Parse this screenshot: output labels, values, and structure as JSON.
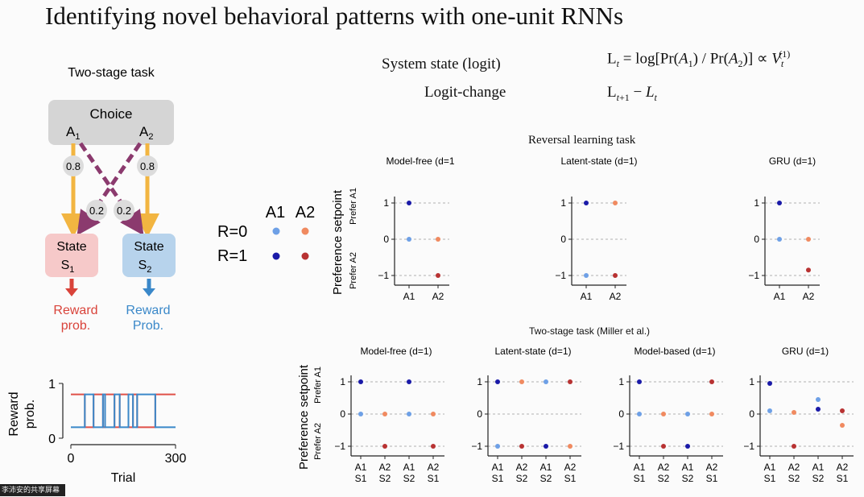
{
  "slide": {
    "title": "Identifying novel behavioral patterns with one-unit RNNs",
    "formula": {
      "state_label": "System state (logit)",
      "change_label": "Logit-change"
    }
  },
  "task_diagram": {
    "heading": "Two-stage task",
    "choice_label": "Choice",
    "action_1": "A",
    "action_1_sub": "1",
    "action_2": "A",
    "action_2_sub": "2",
    "p_common": "0.8",
    "p_rare": "0.2",
    "state_word": "State",
    "state_1": "S",
    "state_1_sub": "1",
    "state_2": "S",
    "state_2_sub": "2",
    "reward_1_a": "Reward",
    "reward_1_b": "prob.",
    "reward_2_a": "Reward",
    "reward_2_b": "Prob.",
    "colors": {
      "state1": "#f6c9c9",
      "state2": "#b7d3ec",
      "common": "#f2b541",
      "rare": "#8b3a6e",
      "reward1": "#d9433a",
      "reward2": "#3a88c9",
      "choice": "#d5d5d5"
    }
  },
  "legend": {
    "col_a1": "A1",
    "col_a2": "A2",
    "row_r0": "R=0",
    "row_r1": "R=1",
    "colors": {
      "a1_r0": "#6ea0e6",
      "a2_r0": "#f08a60",
      "a1_r1": "#1a1aa8",
      "a2_r1": "#b83232"
    }
  },
  "chart_data": [
    {
      "type": "line",
      "id": "reward_prob",
      "ylabel": "Reward prob.",
      "xlabel": "Trial",
      "xlim": [
        0,
        300
      ],
      "ylim": [
        0,
        1
      ],
      "xticks": [
        0,
        300
      ],
      "yticks": [
        0,
        1
      ],
      "series": [
        {
          "color": "#e05048",
          "x": [
            0,
            40,
            40,
            65,
            65,
            92,
            92,
            98,
            98,
            125,
            125,
            140,
            140,
            165,
            165,
            178,
            178,
            190,
            190,
            242,
            242,
            300
          ],
          "y": [
            0.8,
            0.8,
            0.2,
            0.2,
            0.8,
            0.8,
            0.2,
            0.2,
            0.8,
            0.8,
            0.2,
            0.2,
            0.8,
            0.8,
            0.2,
            0.2,
            0.8,
            0.8,
            0.2,
            0.2,
            0.8,
            0.8
          ]
        },
        {
          "color": "#3a88c9",
          "x": [
            0,
            40,
            40,
            65,
            65,
            92,
            92,
            98,
            98,
            125,
            125,
            140,
            140,
            165,
            165,
            178,
            178,
            190,
            190,
            242,
            242,
            300
          ],
          "y": [
            0.2,
            0.2,
            0.8,
            0.8,
            0.2,
            0.2,
            0.8,
            0.8,
            0.2,
            0.2,
            0.8,
            0.8,
            0.2,
            0.2,
            0.8,
            0.8,
            0.2,
            0.2,
            0.8,
            0.8,
            0.2,
            0.2
          ]
        }
      ]
    },
    {
      "type": "scatter",
      "group": "Reversal learning task",
      "id": "rev_model_free",
      "title": "Model-free (d=1)",
      "ylabel": "Preference setpoint",
      "y_top_note": "Prefer A1",
      "y_bottom_note": "Prefer A2",
      "categories": [
        "A1",
        "A2"
      ],
      "yticks": [
        1,
        0,
        -1
      ],
      "ylim": [
        -1.2,
        1.2
      ],
      "points": [
        {
          "x": 0,
          "y": 1,
          "kind": "a1_r1"
        },
        {
          "x": 0,
          "y": 0,
          "kind": "a1_r0"
        },
        {
          "x": 1,
          "y": 0,
          "kind": "a2_r0"
        },
        {
          "x": 1,
          "y": -1,
          "kind": "a2_r1"
        }
      ]
    },
    {
      "type": "scatter",
      "id": "rev_latent_state",
      "title": "Latent-state (d=1)",
      "categories": [
        "A1",
        "A2"
      ],
      "yticks": [
        1,
        0,
        -1
      ],
      "ylim": [
        -1.2,
        1.2
      ],
      "points": [
        {
          "x": 0,
          "y": 1,
          "kind": "a1_r1"
        },
        {
          "x": 1,
          "y": 1,
          "kind": "a2_r0"
        },
        {
          "x": 0,
          "y": -1,
          "kind": "a1_r0"
        },
        {
          "x": 1,
          "y": -1,
          "kind": "a2_r1"
        }
      ]
    },
    {
      "type": "scatter",
      "id": "rev_gru",
      "title": "GRU (d=1)",
      "categories": [
        "A1",
        "A2"
      ],
      "yticks": [
        1,
        0,
        -1
      ],
      "ylim": [
        -1.2,
        1.2
      ],
      "points": [
        {
          "x": 0,
          "y": 1,
          "kind": "a1_r1"
        },
        {
          "x": 0,
          "y": 0,
          "kind": "a1_r0"
        },
        {
          "x": 1,
          "y": 0,
          "kind": "a2_r0"
        },
        {
          "x": 1,
          "y": -0.85,
          "kind": "a2_r1"
        }
      ]
    },
    {
      "type": "scatter",
      "group": "Two-stage task (Miller et al.)",
      "id": "ts_model_free",
      "title": "Model-free (d=1)",
      "ylabel": "Preference setpoint",
      "y_top_note": "Prefer A1",
      "y_bottom_note": "Prefer A2",
      "categories": [
        "A1 S1",
        "A2 S2",
        "A1 S2",
        "A2 S1"
      ],
      "yticks": [
        1,
        0,
        -1
      ],
      "ylim": [
        -1.2,
        1.2
      ],
      "points": [
        {
          "x": 0,
          "y": 1,
          "kind": "a1_r1"
        },
        {
          "x": 0,
          "y": 0,
          "kind": "a1_r0"
        },
        {
          "x": 1,
          "y": 0,
          "kind": "a2_r0"
        },
        {
          "x": 1,
          "y": -1,
          "kind": "a2_r1"
        },
        {
          "x": 2,
          "y": 1,
          "kind": "a1_r1"
        },
        {
          "x": 2,
          "y": 0,
          "kind": "a1_r0"
        },
        {
          "x": 3,
          "y": 0,
          "kind": "a2_r0"
        },
        {
          "x": 3,
          "y": -1,
          "kind": "a2_r1"
        }
      ]
    },
    {
      "type": "scatter",
      "id": "ts_latent_state",
      "title": "Latent-state (d=1)",
      "categories": [
        "A1 S1",
        "A2 S2",
        "A1 S2",
        "A2 S1"
      ],
      "yticks": [
        1,
        0,
        -1
      ],
      "ylim": [
        -1.2,
        1.2
      ],
      "points": [
        {
          "x": 0,
          "y": 1,
          "kind": "a1_r1"
        },
        {
          "x": 0,
          "y": -1,
          "kind": "a1_r0"
        },
        {
          "x": 1,
          "y": 1,
          "kind": "a2_r0"
        },
        {
          "x": 1,
          "y": -1,
          "kind": "a2_r1"
        },
        {
          "x": 2,
          "y": 1,
          "kind": "a1_r0"
        },
        {
          "x": 2,
          "y": -1,
          "kind": "a1_r1"
        },
        {
          "x": 3,
          "y": 1,
          "kind": "a2_r1"
        },
        {
          "x": 3,
          "y": -1,
          "kind": "a2_r0"
        }
      ]
    },
    {
      "type": "scatter",
      "id": "ts_model_based",
      "title": "Model-based (d=1)",
      "categories": [
        "A1 S1",
        "A2 S2",
        "A1 S2",
        "A2 S1"
      ],
      "yticks": [
        1,
        0,
        -1
      ],
      "ylim": [
        -1.2,
        1.2
      ],
      "points": [
        {
          "x": 0,
          "y": 1,
          "kind": "a1_r1"
        },
        {
          "x": 0,
          "y": 0,
          "kind": "a1_r0"
        },
        {
          "x": 1,
          "y": 0,
          "kind": "a2_r0"
        },
        {
          "x": 1,
          "y": -1,
          "kind": "a2_r1"
        },
        {
          "x": 2,
          "y": 0,
          "kind": "a1_r0"
        },
        {
          "x": 2,
          "y": -1,
          "kind": "a1_r1"
        },
        {
          "x": 3,
          "y": 1,
          "kind": "a2_r1"
        },
        {
          "x": 3,
          "y": 0,
          "kind": "a2_r0"
        }
      ]
    },
    {
      "type": "scatter",
      "id": "ts_gru",
      "title": "GRU (d=1)",
      "categories": [
        "A1 S1",
        "A2 S2",
        "A1 S2",
        "A2 S1"
      ],
      "yticks": [
        1,
        0,
        -1
      ],
      "ylim": [
        -1.2,
        1.2
      ],
      "points": [
        {
          "x": 0,
          "y": 0.95,
          "kind": "a1_r1"
        },
        {
          "x": 0,
          "y": 0.1,
          "kind": "a1_r0"
        },
        {
          "x": 1,
          "y": 0.05,
          "kind": "a2_r0"
        },
        {
          "x": 1,
          "y": -1,
          "kind": "a2_r1"
        },
        {
          "x": 2,
          "y": 0.45,
          "kind": "a1_r0"
        },
        {
          "x": 2,
          "y": 0.15,
          "kind": "a1_r1"
        },
        {
          "x": 3,
          "y": 0.1,
          "kind": "a2_r1"
        },
        {
          "x": 3,
          "y": -0.35,
          "kind": "a2_r0"
        }
      ]
    }
  ],
  "footer": {
    "watermark": "李沛安的共享屏幕"
  }
}
